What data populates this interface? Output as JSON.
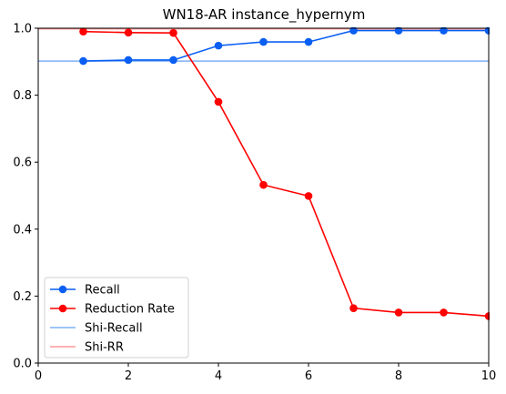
{
  "chart_data": {
    "type": "line",
    "title": "WN18-AR instance_hypernym",
    "xlabel": "",
    "ylabel": "",
    "xlim": [
      0,
      10
    ],
    "ylim": [
      0,
      1.0
    ],
    "xticks": [
      "0",
      "2",
      "4",
      "6",
      "8",
      "10"
    ],
    "yticks": [
      "0.0",
      "0.2",
      "0.4",
      "0.6",
      "0.8",
      "1.0"
    ],
    "grid": false,
    "legend_position": "lower-left",
    "x": [
      1,
      2,
      3,
      4,
      5,
      6,
      7,
      8,
      9,
      10
    ],
    "series": [
      {
        "name": "Recall",
        "style": "line-marker",
        "color": "#0a5ff2",
        "values": [
          0.902,
          0.905,
          0.905,
          0.948,
          0.959,
          0.959,
          0.993,
          0.993,
          0.993,
          0.993
        ]
      },
      {
        "name": "Reduction Rate",
        "style": "line-marker",
        "color": "#ff0000",
        "values": [
          0.99,
          0.987,
          0.986,
          0.78,
          0.532,
          0.499,
          0.164,
          0.151,
          0.151,
          0.14
        ]
      },
      {
        "name": "Shi-Recall",
        "style": "hline",
        "color": "#7fb0f5",
        "value": 0.902
      },
      {
        "name": "Shi-RR",
        "style": "hline",
        "color": "#ff9999",
        "value": 0.998
      }
    ]
  }
}
